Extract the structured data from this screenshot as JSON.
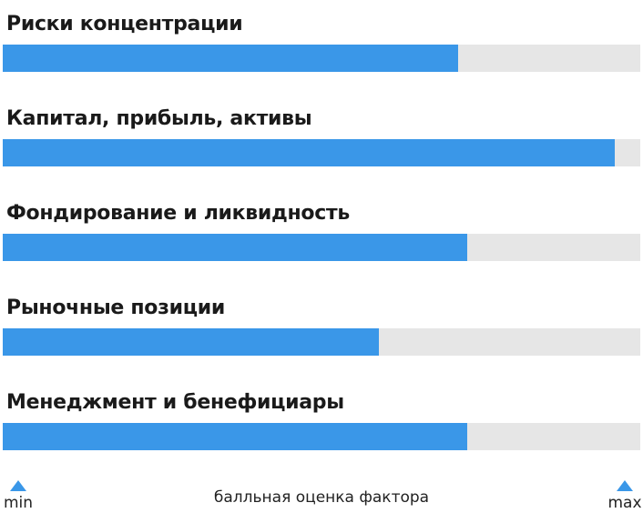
{
  "chart_data": {
    "type": "bar",
    "orientation": "horizontal",
    "categories": [
      "Риски концентрации",
      "Капитал, прибыль, активы",
      "Фондирование и ликвидность",
      "Рыночные позиции",
      "Менеджмент и бенефициары"
    ],
    "values": [
      0.714,
      0.96,
      0.729,
      0.59,
      0.729
    ],
    "xlim": [
      0,
      1
    ],
    "xlabel": "балльная оценка фактора",
    "scale_min_label": "min",
    "scale_max_label": "max",
    "bar_color": "#3a97e8",
    "track_color": "#e6e6e6",
    "grid": false,
    "legend": "none"
  }
}
